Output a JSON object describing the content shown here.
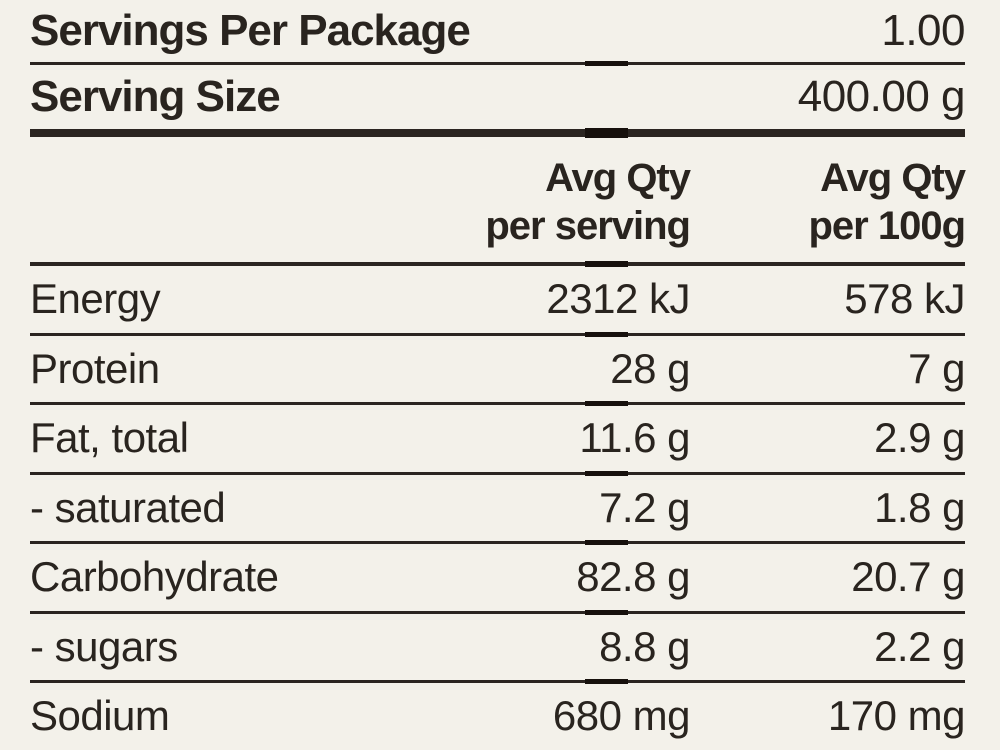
{
  "colors": {
    "background": "#f3f1ea",
    "ink": "#29241f",
    "rule": "#2b2521",
    "rule_overlap": "#17110d"
  },
  "top_rows": [
    {
      "label": "Servings Per Package",
      "value": "1.00"
    },
    {
      "label": "Serving Size",
      "value": "400.00 g"
    }
  ],
  "columns": [
    {
      "line1": "Avg Qty",
      "line2": "per serving"
    },
    {
      "line1": "Avg Qty",
      "line2": "per 100g"
    }
  ],
  "rows": [
    {
      "label": "Energy",
      "per_serving": "2312 kJ",
      "per_100g": "578 kJ"
    },
    {
      "label": "Protein",
      "per_serving": "28 g",
      "per_100g": "7 g"
    },
    {
      "label": "Fat, total",
      "per_serving": "11.6 g",
      "per_100g": "2.9 g"
    },
    {
      "label": "- saturated",
      "per_serving": "7.2 g",
      "per_100g": "1.8 g"
    },
    {
      "label": "Carbohydrate",
      "per_serving": "82.8 g",
      "per_100g": "20.7 g"
    },
    {
      "label": "- sugars",
      "per_serving": "8.8 g",
      "per_100g": "2.2 g"
    },
    {
      "label": "Sodium",
      "per_serving": "680 mg",
      "per_100g": "170 mg"
    }
  ]
}
